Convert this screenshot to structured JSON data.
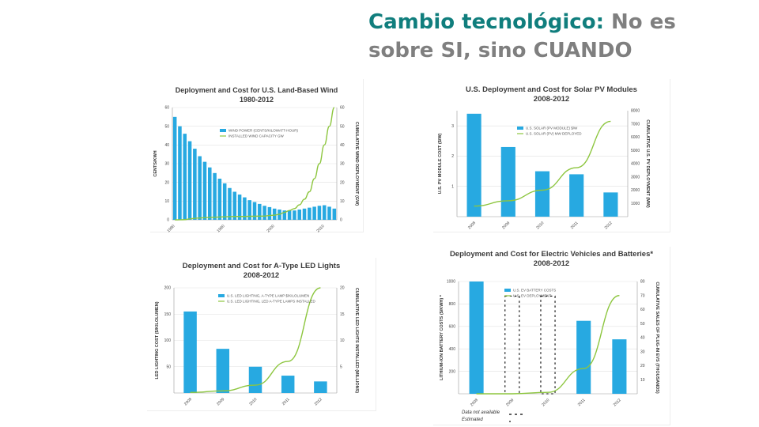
{
  "slide": {
    "title_accent": "Cambio tecnológico:",
    "title_rest": " No es sobre SI, sino CUANDO"
  },
  "colors": {
    "bar": "#27a9e1",
    "line": "#8dc63f",
    "title_accent": "#107e7d",
    "title_rest": "#7f7f7f"
  },
  "chart_data": [
    {
      "type": "bar",
      "title": "Deployment and Cost for U.S. Land-Based Wind",
      "subtitle": "1980-2012",
      "ylabel": "CENTS/KWH",
      "y2label": "CUMULATIVE WIND DEPLOYMENT (GW)",
      "ylim": [
        0,
        60
      ],
      "y2lim": [
        0,
        60
      ],
      "yticks": [
        0,
        10,
        20,
        30,
        40,
        50,
        60
      ],
      "y2ticks": [
        0,
        10,
        20,
        30,
        40,
        50,
        60
      ],
      "categories": [
        "1980",
        "1981",
        "1982",
        "1983",
        "1984",
        "1985",
        "1986",
        "1987",
        "1988",
        "1989",
        "1990",
        "1991",
        "1992",
        "1993",
        "1994",
        "1995",
        "1996",
        "1997",
        "1998",
        "1999",
        "2000",
        "2001",
        "2002",
        "2003",
        "2004",
        "2005",
        "2006",
        "2007",
        "2008",
        "2009",
        "2010",
        "2011",
        "2012"
      ],
      "xtick_labels": [
        {
          "i": 0,
          "label": "1980"
        },
        {
          "i": 10,
          "label": "1990"
        },
        {
          "i": 20,
          "label": "2000"
        },
        {
          "i": 30,
          "label": "2010"
        }
      ],
      "series": [
        {
          "name": "WIND POWER (CENTS/KILOWATT-HOUR)",
          "kind": "bar",
          "values": [
            55,
            50,
            46,
            42,
            38,
            34,
            31,
            28,
            25,
            22,
            19.5,
            17,
            15,
            13.5,
            12,
            10.5,
            9.5,
            8.5,
            7.5,
            6.8,
            6,
            5.5,
            5,
            5,
            5,
            5.5,
            6,
            6.5,
            7,
            7.5,
            7.8,
            7,
            6
          ]
        },
        {
          "name": "INSTALLED WIND CAPACITY GW",
          "kind": "line",
          "values": [
            0,
            0.01,
            0.1,
            0.5,
            0.8,
            1,
            1.2,
            1.3,
            1.4,
            1.5,
            1.6,
            1.7,
            1.8,
            1.8,
            1.8,
            1.9,
            1.9,
            2,
            2,
            2.3,
            2.5,
            3,
            4,
            5,
            6,
            8,
            11,
            15,
            22,
            30,
            40,
            50,
            60
          ]
        }
      ]
    },
    {
      "type": "bar",
      "title": "U.S. Deployment and Cost for Solar PV Modules",
      "subtitle": "2008-2012",
      "ylabel": "U.S. PV MODULE COST ($/W)",
      "y2label": "CUMULATIVE U.S. PV DEPLOYMENT (MW)",
      "ylim": [
        0,
        3.5
      ],
      "y2lim": [
        0,
        8000
      ],
      "yticks": [
        1,
        2,
        3
      ],
      "y2ticks": [
        1000,
        2000,
        3000,
        4000,
        5000,
        6000,
        7000,
        8000
      ],
      "categories": [
        "2008",
        "2009",
        "2010",
        "2011",
        "2012"
      ],
      "series": [
        {
          "name": "U.S. SOLAR (PV MODULE) $/W",
          "kind": "bar",
          "values": [
            3.4,
            2.3,
            1.5,
            1.4,
            0.8
          ]
        },
        {
          "name": "U.S. SOLAR (PV) MW DEPLOYED",
          "kind": "line",
          "values": [
            800,
            1200,
            2000,
            3700,
            7200
          ]
        }
      ]
    },
    {
      "type": "bar",
      "title": "Deployment and Cost for A-Type LED Lights",
      "subtitle": "2008-2012",
      "ylabel": "LED LIGHTING COST ($/KILOLUMEN)",
      "y2label": "CUMULATIVE LED LIGHTS INSTALLED (MILLIONS)",
      "ylim": [
        0,
        200
      ],
      "y2lim": [
        0,
        20
      ],
      "yticks": [
        50,
        100,
        150,
        200
      ],
      "y2ticks": [
        5,
        10,
        15,
        20
      ],
      "categories": [
        "2008",
        "2009",
        "2010",
        "2011",
        "2012"
      ],
      "series": [
        {
          "name": "U.S. LED LIGHTING, A-TYPE LAMP $/KILOLUMEN",
          "kind": "bar",
          "values": [
            155,
            84,
            50,
            33,
            22
          ]
        },
        {
          "name": "U.S. LED LIGHTING, LED A-TYPE LAMPS INSTALLED",
          "kind": "line",
          "values": [
            0.1,
            0.4,
            1.5,
            6,
            20
          ]
        }
      ]
    },
    {
      "type": "bar",
      "title": "Deployment and Cost for Electric Vehicles and Batteries*",
      "subtitle": "2008-2012",
      "ylabel": "LITHIUM-ION BATTERY COSTS ($/KWH) *",
      "y2label": "CUMULATIVE SALES OF PLUG-IN EVS (THOUSANDS)",
      "ylim": [
        0,
        1000
      ],
      "y2lim": [
        0,
        80
      ],
      "yticks": [
        200,
        400,
        600,
        800,
        1000
      ],
      "y2ticks": [
        10,
        20,
        30,
        40,
        50,
        60,
        70,
        80
      ],
      "categories": [
        "2008",
        "2009",
        "2010",
        "2011",
        "2012"
      ],
      "series": [
        {
          "name": "U.S. EV BATTERY COSTS",
          "kind": "bar",
          "values": [
            1000,
            null,
            null,
            650,
            485
          ],
          "not_available": [
            false,
            true,
            true,
            false,
            false
          ]
        },
        {
          "name": "U.S. EV DEPLOYMENT",
          "kind": "line",
          "values": [
            0,
            0,
            1,
            18,
            70
          ]
        }
      ],
      "footnotes": [
        "Data not available",
        "Estimated"
      ]
    }
  ]
}
